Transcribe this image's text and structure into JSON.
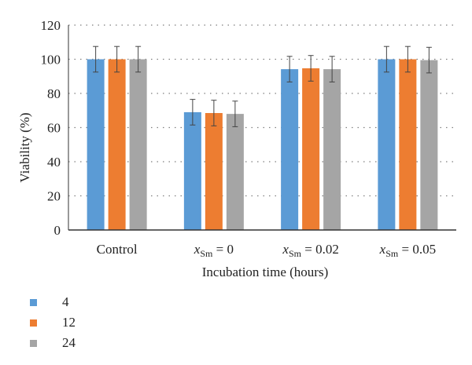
{
  "chart_data": {
    "type": "bar",
    "categories": [
      {
        "prefix": "",
        "sub": "",
        "suffix": "Control"
      },
      {
        "prefix": "x",
        "sub": "Sm",
        "suffix": " = 0"
      },
      {
        "prefix": "x",
        "sub": "Sm",
        "suffix": " = 0.02"
      },
      {
        "prefix": "x",
        "sub": "Sm",
        "suffix": " = 0.05"
      }
    ],
    "series": [
      {
        "name": "4",
        "color": "#5B9BD5",
        "values": [
          100,
          69,
          94.2,
          100
        ],
        "errors": [
          7.5,
          7.5,
          7.5,
          7.5
        ]
      },
      {
        "name": "12",
        "color": "#ED7D31",
        "values": [
          100,
          68.5,
          94.7,
          100
        ],
        "errors": [
          7.5,
          7.5,
          7.5,
          7.5
        ]
      },
      {
        "name": "24",
        "color": "#A5A5A5",
        "values": [
          100,
          68,
          94.2,
          99.5
        ],
        "errors": [
          7.5,
          7.5,
          7.5,
          7.5
        ]
      }
    ],
    "xlabel": "Incubation time (hours)",
    "ylabel": "Viability (%)",
    "ylim": [
      0,
      120
    ],
    "yticks": [
      0,
      20,
      40,
      60,
      80,
      100,
      120
    ],
    "grid": true,
    "legend_position": "bottom-left"
  }
}
